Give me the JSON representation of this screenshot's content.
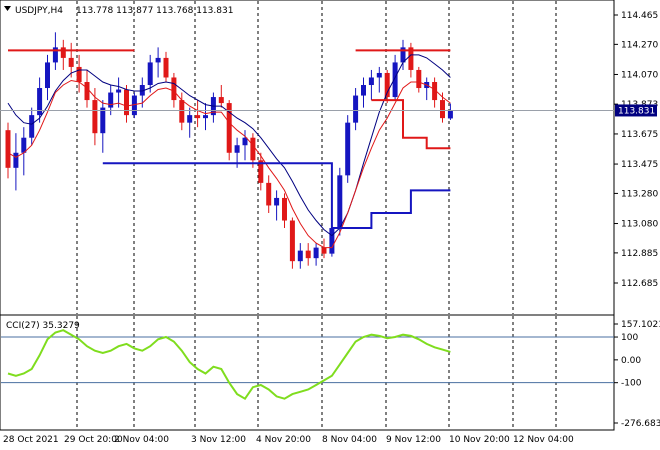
{
  "header": {
    "symbol_info": "USDJPY,H4",
    "ohlc": "113.778 113.877 113.768 113.831",
    "indicator_title": "CCI(27) 35.3279"
  },
  "colors": {
    "bull": "#1515c0",
    "bear": "#e01818",
    "ma_fast": "#e01818",
    "ma_slow": "#000080",
    "stop_red": "#e01818",
    "stop_blue": "#1515c0",
    "cci": "#7fdd1e",
    "cci_level": "#4a6fa0",
    "price_box": "#000080"
  },
  "chart_data": [
    {
      "type": "candlestick",
      "symbol": "USDJPY",
      "timeframe": "H4",
      "ylim": [
        112.685,
        114.465
      ],
      "y_ticks": [
        "114.465",
        "114.270",
        "114.070",
        "113.873",
        "113.675",
        "113.475",
        "113.280",
        "113.080",
        "112.885",
        "112.685"
      ],
      "x_ticks": [
        "28 Oct 2021",
        "29 Oct 20:00",
        "2 Nov 04:00",
        "3 Nov 12:00",
        "4 Nov 20:00",
        "8 Nov 04:00",
        "9 Nov 12:00",
        "10 Nov 20:00",
        "12 Nov 04:00"
      ],
      "last_price": "113.831",
      "candles": [
        [
          113.7,
          113.75,
          113.38,
          113.45
        ],
        [
          113.45,
          113.68,
          113.3,
          113.55
        ],
        [
          113.55,
          113.72,
          113.4,
          113.65
        ],
        [
          113.65,
          113.85,
          113.6,
          113.8
        ],
        [
          113.8,
          114.05,
          113.75,
          113.98
        ],
        [
          113.98,
          114.2,
          113.9,
          114.15
        ],
        [
          114.15,
          114.35,
          114.1,
          114.25
        ],
        [
          114.25,
          114.3,
          114.1,
          114.18
        ],
        [
          114.18,
          114.28,
          114.05,
          114.12
        ],
        [
          114.12,
          114.2,
          113.95,
          114.02
        ],
        [
          114.02,
          114.1,
          113.85,
          113.9
        ],
        [
          113.9,
          113.98,
          113.6,
          113.68
        ],
        [
          113.68,
          113.9,
          113.55,
          113.85
        ],
        [
          113.85,
          114.0,
          113.8,
          113.95
        ],
        [
          113.95,
          114.05,
          113.85,
          113.97
        ],
        [
          113.97,
          114.0,
          113.75,
          113.8
        ],
        [
          113.8,
          113.95,
          113.78,
          113.93
        ],
        [
          113.93,
          114.05,
          113.85,
          114.0
        ],
        [
          114.0,
          114.2,
          113.95,
          114.15
        ],
        [
          114.15,
          114.25,
          114.05,
          114.18
        ],
        [
          114.18,
          114.22,
          114.02,
          114.05
        ],
        [
          114.05,
          114.08,
          113.85,
          113.9
        ],
        [
          113.9,
          113.95,
          113.7,
          113.75
        ],
        [
          113.75,
          113.85,
          113.65,
          113.8
        ],
        [
          113.8,
          113.9,
          113.72,
          113.78
        ],
        [
          113.78,
          113.88,
          113.7,
          113.8
        ],
        [
          113.8,
          113.95,
          113.75,
          113.92
        ],
        [
          113.92,
          114.0,
          113.85,
          113.88
        ],
        [
          113.88,
          113.9,
          113.5,
          113.55
        ],
        [
          113.55,
          113.65,
          113.45,
          113.6
        ],
        [
          113.6,
          113.7,
          113.5,
          113.65
        ],
        [
          113.65,
          113.68,
          113.45,
          113.5
        ],
        [
          113.5,
          113.55,
          113.3,
          113.35
        ],
        [
          113.35,
          113.4,
          113.15,
          113.2
        ],
        [
          113.2,
          113.3,
          113.1,
          113.25
        ],
        [
          113.25,
          113.28,
          113.05,
          113.1
        ],
        [
          113.1,
          113.12,
          112.78,
          112.83
        ],
        [
          112.83,
          112.95,
          112.78,
          112.9
        ],
        [
          112.9,
          112.95,
          112.8,
          112.85
        ],
        [
          112.85,
          112.95,
          112.8,
          112.92
        ],
        [
          112.92,
          112.98,
          112.85,
          112.88
        ],
        [
          112.88,
          113.1,
          112.86,
          113.05
        ],
        [
          113.05,
          113.45,
          113.0,
          113.4
        ],
        [
          113.4,
          113.8,
          113.35,
          113.75
        ],
        [
          113.75,
          113.98,
          113.7,
          113.93
        ],
        [
          113.93,
          114.05,
          113.85,
          114.0
        ],
        [
          114.0,
          114.1,
          113.9,
          114.05
        ],
        [
          114.05,
          114.12,
          113.95,
          114.08
        ],
        [
          114.08,
          114.1,
          113.88,
          113.92
        ],
        [
          113.92,
          114.2,
          113.9,
          114.15
        ],
        [
          114.15,
          114.3,
          114.1,
          114.25
        ],
        [
          114.25,
          114.28,
          114.05,
          114.1
        ],
        [
          114.1,
          114.12,
          113.95,
          113.98
        ],
        [
          113.98,
          114.05,
          113.9,
          114.02
        ],
        [
          114.02,
          114.05,
          113.85,
          113.9
        ],
        [
          113.9,
          113.95,
          113.75,
          113.78
        ],
        [
          113.778,
          113.877,
          113.768,
          113.831
        ]
      ],
      "ma_fast_line": [
        113.55,
        113.52,
        113.55,
        113.6,
        113.7,
        113.82,
        113.95,
        114.0,
        114.03,
        114.02,
        113.98,
        113.92,
        113.88,
        113.87,
        113.88,
        113.86,
        113.87,
        113.88,
        113.93,
        113.97,
        113.98,
        113.96,
        113.9,
        113.86,
        113.83,
        113.81,
        113.82,
        113.82,
        113.75,
        113.7,
        113.66,
        113.6,
        113.53,
        113.45,
        113.38,
        113.3,
        113.18,
        113.08,
        113.0,
        112.95,
        112.92,
        112.92,
        113.02,
        113.15,
        113.3,
        113.45,
        113.58,
        113.7,
        113.78,
        113.88,
        113.98,
        114.02,
        114.02,
        114.0,
        113.97,
        113.92,
        113.88
      ],
      "ma_slow_line": [
        113.88,
        113.8,
        113.75,
        113.74,
        113.78,
        113.86,
        113.96,
        114.03,
        114.08,
        114.1,
        114.1,
        114.06,
        114.02,
        114.0,
        113.99,
        113.97,
        113.96,
        113.96,
        113.98,
        114.01,
        114.02,
        114.01,
        113.97,
        113.93,
        113.9,
        113.87,
        113.86,
        113.86,
        113.82,
        113.78,
        113.75,
        113.71,
        113.65,
        113.58,
        113.51,
        113.45,
        113.36,
        113.26,
        113.17,
        113.1,
        113.04,
        113.0,
        113.05,
        113.15,
        113.3,
        113.48,
        113.65,
        113.82,
        113.95,
        114.05,
        114.15,
        114.2,
        114.2,
        114.18,
        114.14,
        114.1,
        114.05
      ],
      "stop_red_segments": [
        {
          "from": 0,
          "to": 16,
          "value": 114.23
        },
        {
          "from": 44,
          "to": 57,
          "value": 114.23
        },
        {
          "from": 46,
          "to": 50,
          "value": 113.9
        },
        {
          "from": 50,
          "to": 53,
          "value": 113.65
        },
        {
          "from": 53,
          "to": 57,
          "value": 113.58
        }
      ],
      "stop_blue_segments": [
        {
          "from": 12,
          "to": 41,
          "value": 113.48
        },
        {
          "from": 41,
          "to": 46,
          "value": 113.05
        },
        {
          "from": 46,
          "to": 51,
          "value": 113.15
        },
        {
          "from": 51,
          "to": 57,
          "value": 113.3
        }
      ]
    },
    {
      "type": "line",
      "name": "CCI(27)",
      "ylim": [
        -276.6837,
        157.1021
      ],
      "y_ticks": [
        "157.1021",
        "100",
        "0.00",
        "-100",
        "-276.6837"
      ],
      "levels": [
        100,
        -100
      ],
      "values": [
        -60,
        -70,
        -60,
        -40,
        20,
        90,
        120,
        130,
        110,
        90,
        60,
        40,
        30,
        40,
        60,
        70,
        50,
        40,
        60,
        90,
        100,
        80,
        40,
        -10,
        -40,
        -60,
        -30,
        -40,
        -100,
        -150,
        -170,
        -120,
        -110,
        -130,
        -160,
        -170,
        -150,
        -140,
        -130,
        -110,
        -90,
        -70,
        -20,
        30,
        80,
        100,
        110,
        105,
        95,
        100,
        110,
        105,
        90,
        70,
        55,
        45,
        35
      ]
    }
  ]
}
